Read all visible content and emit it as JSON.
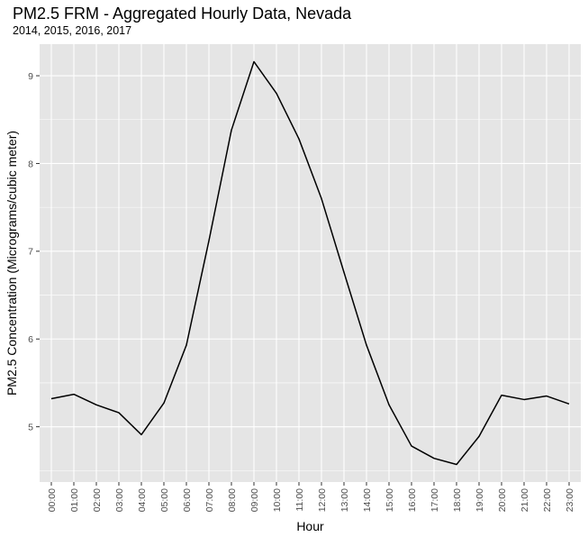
{
  "chart_data": {
    "type": "line",
    "title": "PM2.5 FRM - Aggregated Hourly Data, Nevada",
    "subtitle": "2014, 2015, 2016, 2017",
    "xlabel": "Hour",
    "ylabel": "PM2.5 Concentration (Micrograms/cubic meter)",
    "categories": [
      "00:00",
      "01:00",
      "02:00",
      "03:00",
      "04:00",
      "05:00",
      "06:00",
      "07:00",
      "08:00",
      "09:00",
      "10:00",
      "11:00",
      "12:00",
      "13:00",
      "14:00",
      "15:00",
      "16:00",
      "17:00",
      "18:00",
      "19:00",
      "20:00",
      "21:00",
      "22:00",
      "23:00"
    ],
    "values": [
      5.32,
      5.37,
      5.25,
      5.16,
      4.91,
      5.27,
      5.93,
      7.12,
      8.38,
      9.16,
      8.8,
      8.28,
      7.6,
      6.76,
      5.93,
      5.25,
      4.78,
      4.64,
      4.57,
      4.89,
      5.36,
      5.31,
      5.35,
      5.26
    ],
    "ylim": [
      4.37,
      9.36
    ],
    "yticks": [
      "5",
      "6",
      "7",
      "8",
      "9"
    ],
    "grid": true,
    "legend": "none",
    "colors": {
      "panel": "#e5e5e5",
      "grid": "#ffffff",
      "line": "#000000",
      "tick_text": "#4d4d4d"
    }
  }
}
